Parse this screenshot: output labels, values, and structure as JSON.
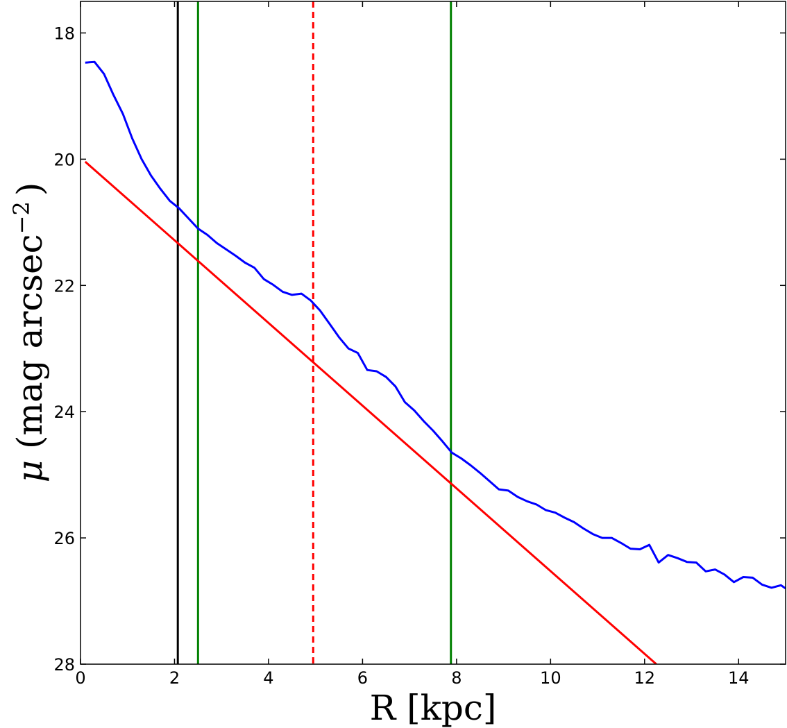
{
  "chart_data": {
    "type": "line",
    "xlabel": "R [kpc]",
    "ylabel": {
      "symbol": "μ",
      "text": " (mag arcsec",
      "exponent": "−2",
      "close": ")"
    },
    "xlim": [
      0,
      15
    ],
    "ylim": [
      28,
      17.5
    ],
    "y_inverted": true,
    "xticks": [
      0,
      2,
      4,
      6,
      8,
      10,
      12,
      14
    ],
    "xtick_labels": [
      "0",
      "2",
      "4",
      "6",
      "8",
      "10",
      "12",
      "14"
    ],
    "yticks": [
      18,
      20,
      22,
      24,
      26,
      28
    ],
    "ytick_labels": [
      "18",
      "20",
      "22",
      "24",
      "26",
      "28"
    ],
    "grid": false,
    "colors": {
      "profile": "#0000ff",
      "fit": "#ff0000",
      "fit_range": "#008000",
      "inner_limit": "#000000",
      "break": "#ff0000"
    },
    "series": [
      {
        "key": "profile",
        "style": "solid",
        "x": [
          0.1,
          0.3,
          0.5,
          0.7,
          0.9,
          1.1,
          1.3,
          1.5,
          1.7,
          1.9,
          2.1,
          2.3,
          2.5,
          2.7,
          2.9,
          3.1,
          3.3,
          3.5,
          3.7,
          3.9,
          4.1,
          4.3,
          4.5,
          4.7,
          4.9,
          5.1,
          5.3,
          5.5,
          5.7,
          5.9,
          6.1,
          6.3,
          6.5,
          6.7,
          6.9,
          7.1,
          7.3,
          7.5,
          7.7,
          7.9,
          8.1,
          8.3,
          8.5,
          8.7,
          8.9,
          9.1,
          9.3,
          9.5,
          9.7,
          9.9,
          10.1,
          10.3,
          10.5,
          10.7,
          10.9,
          11.1,
          11.3,
          11.5,
          11.7,
          11.9,
          12.1,
          12.3,
          12.5,
          12.7,
          12.9,
          13.1,
          13.3,
          13.5,
          13.7,
          13.9,
          14.1,
          14.3,
          14.5,
          14.7,
          14.9,
          15.0
        ],
        "y": [
          18.47,
          18.46,
          18.65,
          18.98,
          19.28,
          19.67,
          20.0,
          20.26,
          20.47,
          20.66,
          20.78,
          20.94,
          21.1,
          21.2,
          21.33,
          21.43,
          21.53,
          21.64,
          21.72,
          21.9,
          21.99,
          22.1,
          22.15,
          22.13,
          22.24,
          22.4,
          22.61,
          22.82,
          23.0,
          23.07,
          23.34,
          23.36,
          23.45,
          23.6,
          23.85,
          23.98,
          24.15,
          24.3,
          24.47,
          24.65,
          24.74,
          24.85,
          24.97,
          25.1,
          25.23,
          25.25,
          25.35,
          25.42,
          25.47,
          25.56,
          25.6,
          25.68,
          25.75,
          25.85,
          25.94,
          26.0,
          26.0,
          26.08,
          26.17,
          26.18,
          26.11,
          26.39,
          26.27,
          26.32,
          26.38,
          26.39,
          26.53,
          26.5,
          26.58,
          26.7,
          26.62,
          26.63,
          26.74,
          26.79,
          26.75,
          26.8
        ]
      },
      {
        "key": "fit",
        "style": "solid",
        "x": [
          0.1,
          12.25
        ],
        "y": [
          20.04,
          28.0
        ]
      }
    ],
    "vlines": [
      {
        "key": "inner_limit",
        "x": 2.07,
        "style": "solid"
      },
      {
        "key": "fit_range",
        "x": 2.5,
        "style": "solid"
      },
      {
        "key": "break",
        "x": 4.95,
        "style": "dashed"
      },
      {
        "key": "fit_range",
        "x": 7.88,
        "style": "solid"
      }
    ]
  }
}
